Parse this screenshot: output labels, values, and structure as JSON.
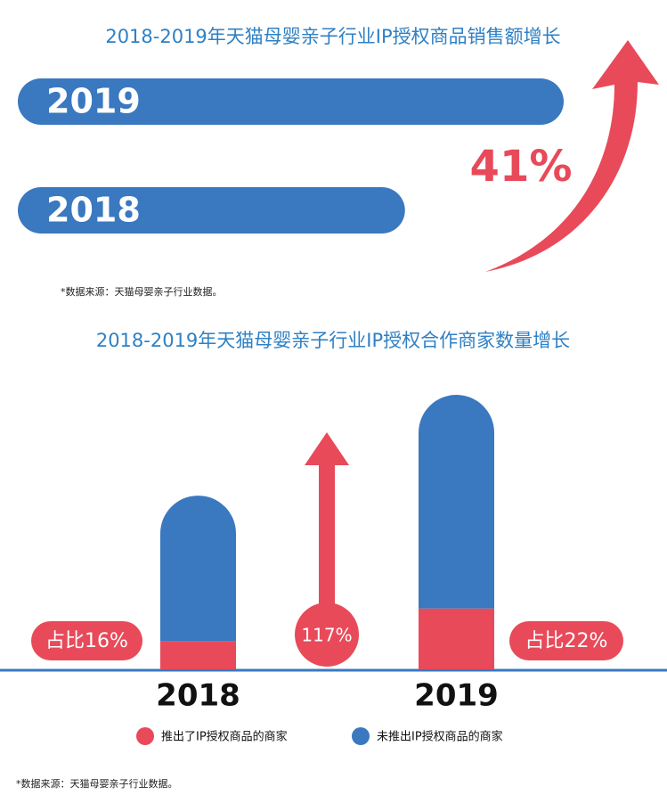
{
  "chart_data": [
    {
      "type": "hbar",
      "title": "2018-2019年天猫母婴亲子行业IP授权商品销售额增长",
      "categories": [
        "2019",
        "2018"
      ],
      "values": [
        141,
        100
      ],
      "color": "#3a78c0",
      "annotation": "41%",
      "note": "*数据来源：天猫母婴亲子行业数据。"
    },
    {
      "type": "stacked_bar",
      "title": "2018-2019年天猫母婴亲子行业IP授权合作商家数量增长",
      "categories": [
        "2018",
        "2019"
      ],
      "series": [
        {
          "name": "推出了IP授权商品的商家",
          "color": "#e84a5a",
          "values": [
            16,
            35
          ]
        },
        {
          "name": "未推出IP授权商品的商家",
          "color": "#3a78c0",
          "values": [
            84,
            123
          ]
        }
      ],
      "annotations": [
        "占比16%",
        "117%",
        "占比22%"
      ],
      "note": "*数据来源：天猫母婴亲子行业数据。"
    }
  ]
}
